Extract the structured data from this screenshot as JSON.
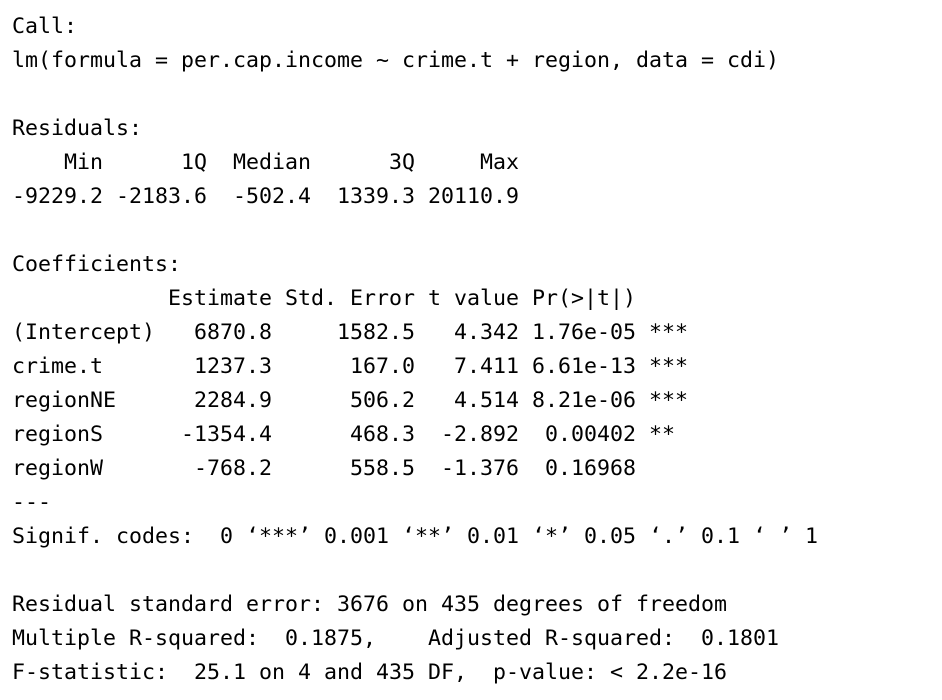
{
  "console": {
    "lines": [
      "Call:",
      "lm(formula = per.cap.income ~ crime.t + region, data = cdi)",
      "",
      "Residuals:",
      "    Min      1Q  Median      3Q     Max ",
      "-9229.2 -2183.6  -502.4  1339.3 20110.9 ",
      "",
      "Coefficients:",
      "            Estimate Std. Error t value Pr(>|t|)    ",
      "(Intercept)   6870.8     1582.5   4.342 1.76e-05 ***",
      "crime.t       1237.3      167.0   7.411 6.61e-13 ***",
      "regionNE      2284.9      506.2   4.514 8.21e-06 ***",
      "regionS      -1354.4      468.3  -2.892  0.00402 ** ",
      "regionW       -768.2      558.5  -1.376  0.16968    ",
      "---",
      "Signif. codes:  0 ‘***’ 0.001 ‘**’ 0.01 ‘*’ 0.05 ‘.’ 0.1 ‘ ’ 1",
      "",
      "Residual standard error: 3676 on 435 degrees of freedom",
      "Multiple R-squared:  0.1875,\tAdjusted R-squared:  0.1801 ",
      "F-statistic:  25.1 on 4 and 435 DF,  p-value: < 2.2e-16"
    ]
  }
}
